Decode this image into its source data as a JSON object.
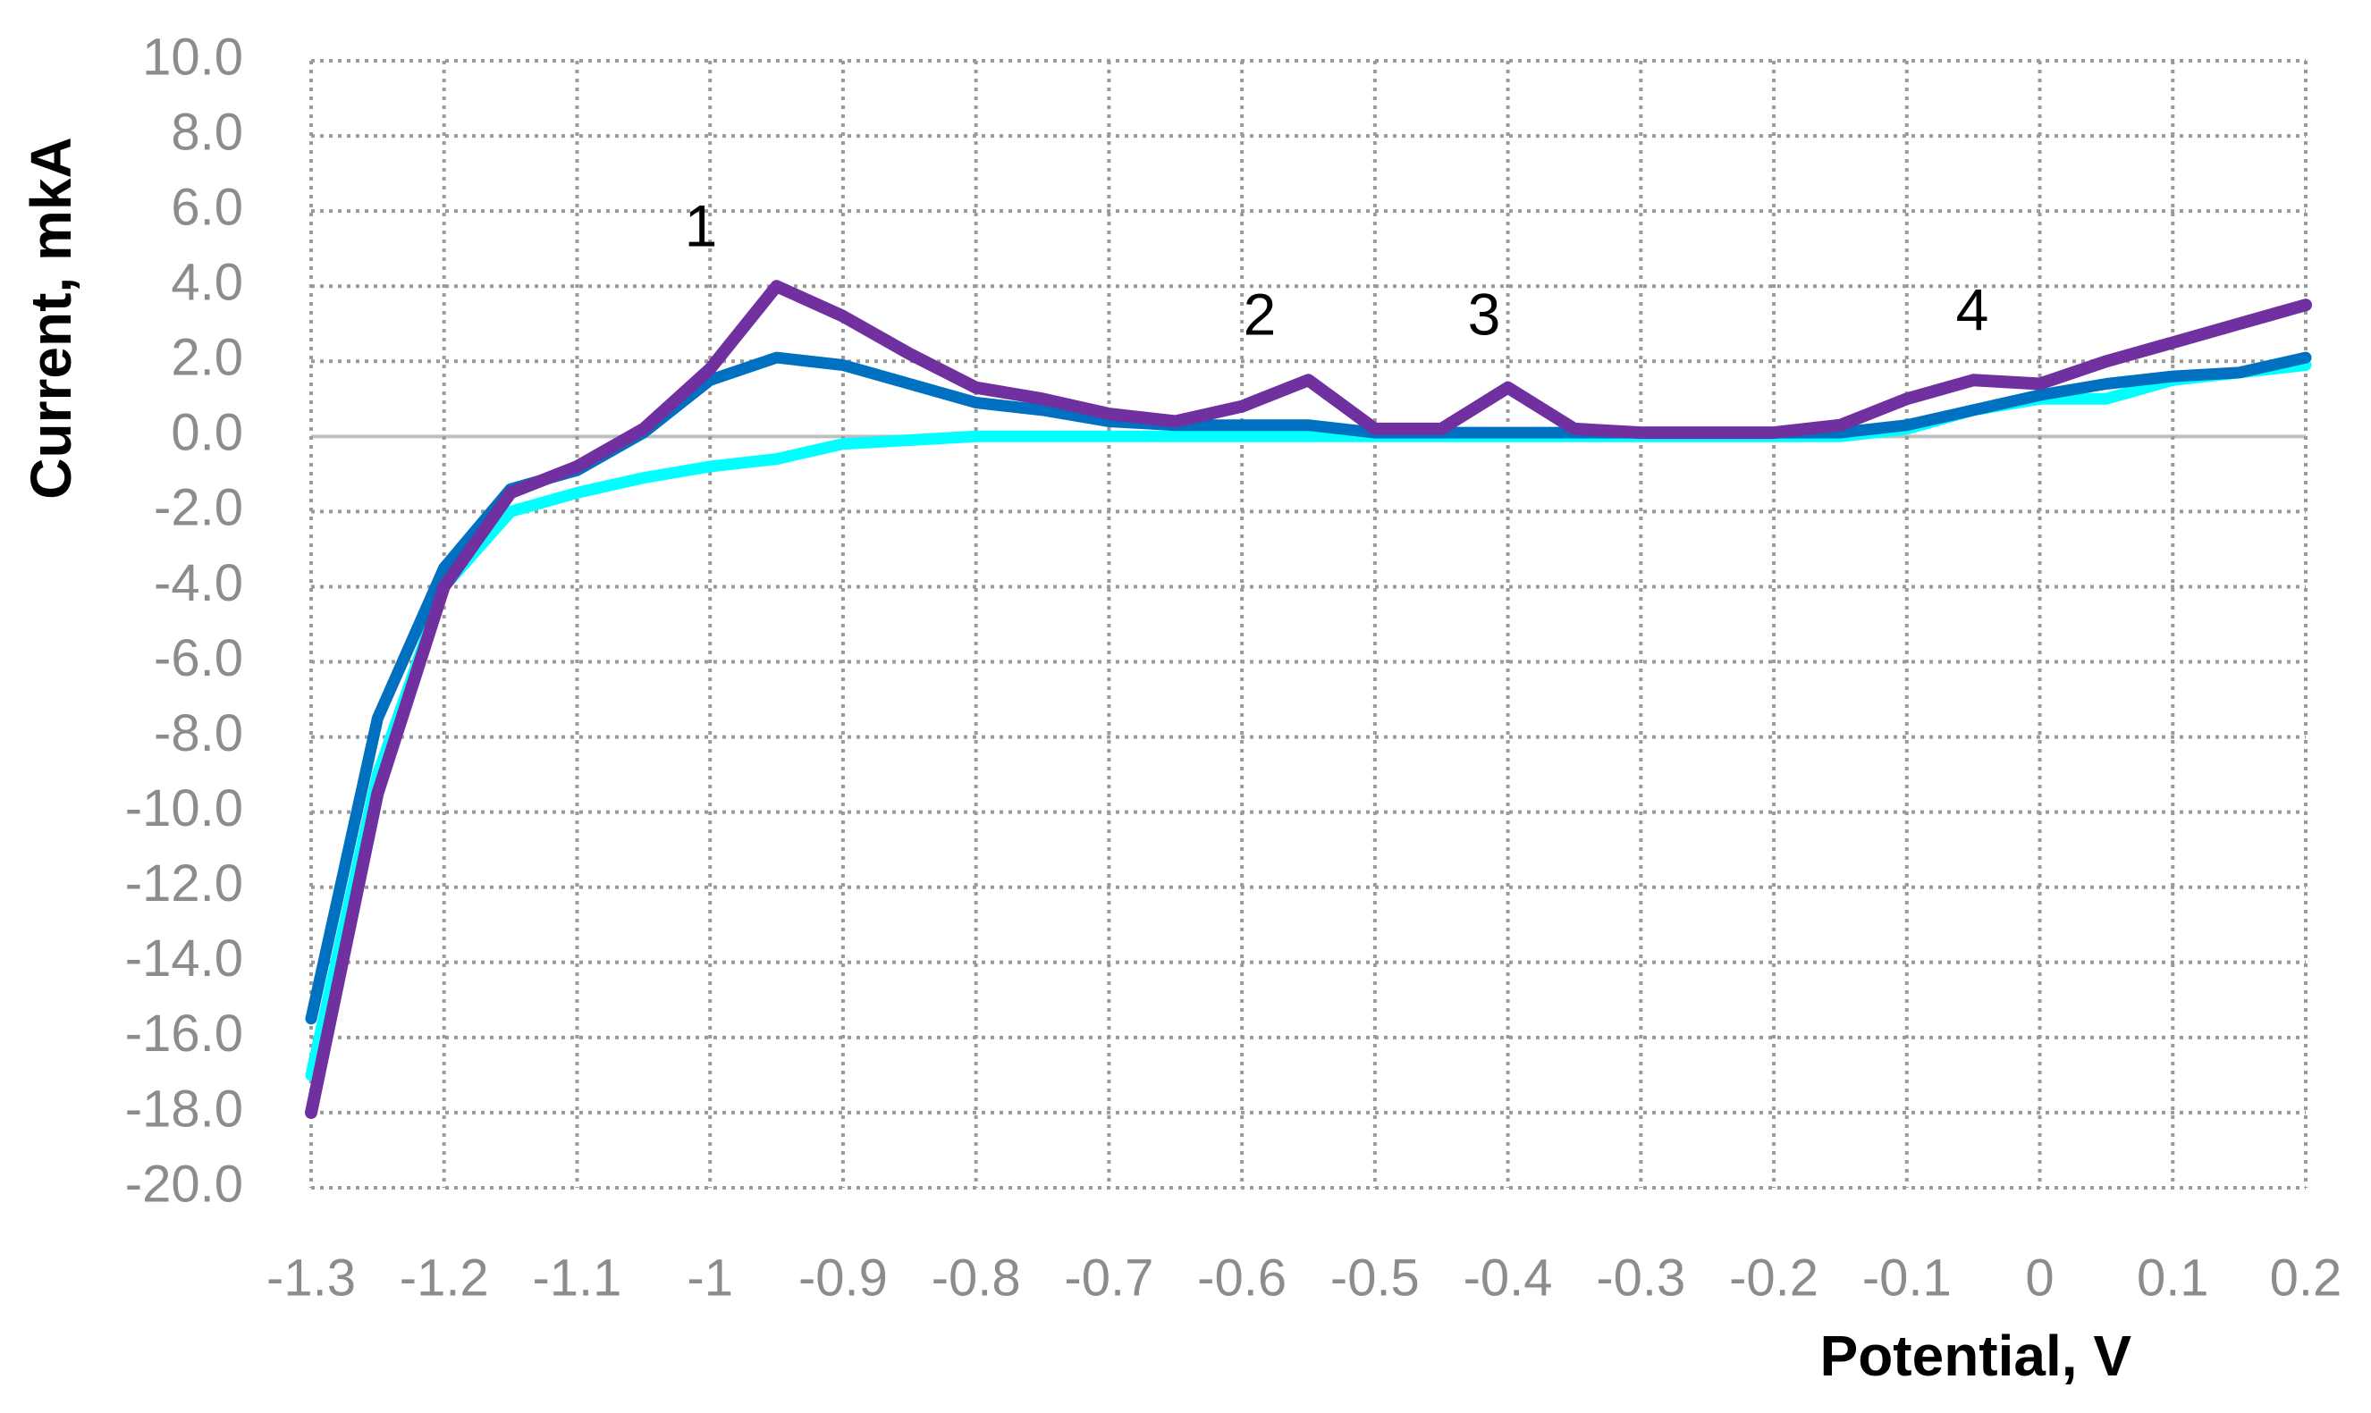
{
  "chart_data": {
    "type": "line",
    "x_label": "Potential, V",
    "y_label": "Current, mkA",
    "x": [
      -1.3,
      -1.25,
      -1.2,
      -1.15,
      -1.1,
      -1.05,
      -1.0,
      -0.95,
      -0.9,
      -0.85,
      -0.8,
      -0.75,
      -0.7,
      -0.65,
      -0.6,
      -0.55,
      -0.5,
      -0.45,
      -0.4,
      -0.35,
      -0.3,
      -0.25,
      -0.2,
      -0.15,
      -0.1,
      -0.05,
      0,
      0.05,
      0.1,
      0.15,
      0.2
    ],
    "series": [
      {
        "color": "#00ffff",
        "values": [
          -17,
          -9,
          -4,
          -2.0,
          -1.5,
          -1.1,
          -0.8,
          -0.6,
          -0.2,
          -0.1,
          0,
          0,
          0,
          0,
          0,
          0,
          0,
          0,
          0,
          0,
          0,
          0,
          0,
          0,
          0.2,
          0.7,
          1.0,
          1.0,
          1.5,
          1.7,
          1.9
        ]
      },
      {
        "color": "#0070c0",
        "values": [
          -15.5,
          -7.5,
          -3.5,
          -1.4,
          -0.9,
          0.1,
          1.5,
          2.1,
          1.9,
          1.4,
          0.9,
          0.7,
          0.4,
          0.3,
          0.3,
          0.3,
          0.1,
          0.1,
          0.1,
          0.1,
          0.1,
          0.1,
          0.1,
          0.1,
          0.3,
          0.7,
          1.1,
          1.4,
          1.6,
          1.7,
          2.1
        ]
      },
      {
        "color": "#7030a0",
        "values": [
          -18,
          -9.5,
          -4,
          -1.5,
          -0.8,
          0.2,
          1.8,
          4.0,
          3.2,
          2.2,
          1.3,
          1.0,
          0.6,
          0.4,
          0.8,
          1.5,
          0.2,
          0.2,
          1.3,
          0.2,
          0.1,
          0.1,
          0.1,
          0.3,
          1.0,
          1.5,
          1.4,
          2.0,
          2.5,
          3.0,
          3.5
        ]
      }
    ],
    "annotations": [
      "1",
      "2",
      "3",
      "4"
    ],
    "xlim": [
      -1.3,
      0.2
    ],
    "xticks": [
      -1.3,
      -1.2,
      -1.1,
      -1,
      -0.9,
      -0.8,
      -0.7,
      -0.6,
      -0.5,
      -0.4,
      -0.3,
      -0.2,
      -0.1,
      0,
      0.1,
      0.2
    ],
    "ylim": [
      -20,
      10
    ],
    "yticks": [
      {
        "value": -20,
        "label": "-20.0"
      },
      {
        "value": -18,
        "label": "-18.0"
      },
      {
        "value": -16,
        "label": "-16.0"
      },
      {
        "value": -14,
        "label": "-14.0"
      },
      {
        "value": -12,
        "label": "-12.0"
      },
      {
        "value": -10,
        "label": "-10.0"
      },
      {
        "value": -8,
        "label": "-8.0"
      },
      {
        "value": -6,
        "label": "-6.0"
      },
      {
        "value": -4,
        "label": "-4.0"
      },
      {
        "value": -2,
        "label": "-2.0"
      },
      {
        "value": 0,
        "label": "0.0"
      },
      {
        "value": 2,
        "label": "2.0"
      },
      {
        "value": 4,
        "label": "4.0"
      },
      {
        "value": 6,
        "label": "6.0"
      },
      {
        "value": 8,
        "label": "8.0"
      },
      {
        "value": 10,
        "label": "10.0"
      }
    ],
    "grid": true
  }
}
